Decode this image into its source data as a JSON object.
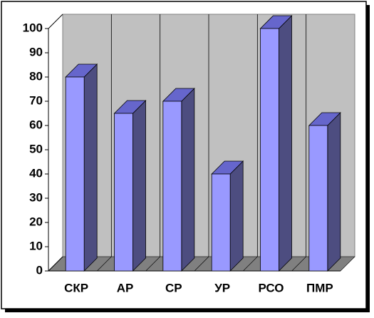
{
  "chart_data": {
    "type": "bar3d",
    "categories": [
      "СКР",
      "АР",
      "СР",
      "УР",
      "РСО",
      "ПМР"
    ],
    "values": [
      80,
      65,
      70,
      40,
      100,
      60
    ],
    "color": "#9999ff",
    "ylim": [
      0,
      100
    ],
    "yticks": [
      0,
      10,
      20,
      30,
      40,
      50,
      60,
      70,
      80,
      90,
      100
    ]
  }
}
